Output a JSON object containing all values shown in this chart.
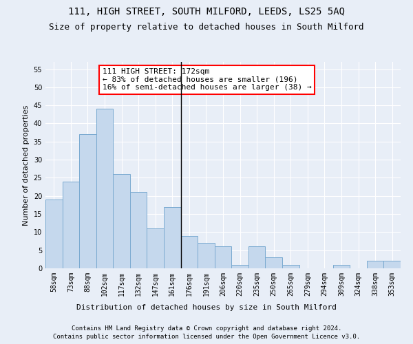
{
  "title": "111, HIGH STREET, SOUTH MILFORD, LEEDS, LS25 5AQ",
  "subtitle": "Size of property relative to detached houses in South Milford",
  "xlabel": "Distribution of detached houses by size in South Milford",
  "ylabel": "Number of detached properties",
  "bar_color": "#c5d8ed",
  "bar_edge_color": "#7aaad0",
  "background_color": "#e8eef7",
  "grid_color": "#ffffff",
  "categories": [
    "58sqm",
    "73sqm",
    "88sqm",
    "102sqm",
    "117sqm",
    "132sqm",
    "147sqm",
    "161sqm",
    "176sqm",
    "191sqm",
    "206sqm",
    "220sqm",
    "235sqm",
    "250sqm",
    "265sqm",
    "279sqm",
    "294sqm",
    "309sqm",
    "324sqm",
    "338sqm",
    "353sqm"
  ],
  "values": [
    19,
    24,
    37,
    44,
    26,
    21,
    11,
    17,
    9,
    7,
    6,
    1,
    6,
    3,
    1,
    0,
    0,
    1,
    0,
    2,
    2
  ],
  "ylim": [
    0,
    57
  ],
  "yticks": [
    0,
    5,
    10,
    15,
    20,
    25,
    30,
    35,
    40,
    45,
    50,
    55
  ],
  "vline_x": 7.5,
  "annotation_title": "111 HIGH STREET: 172sqm",
  "annotation_line1": "← 83% of detached houses are smaller (196)",
  "annotation_line2": "16% of semi-detached houses are larger (38) →",
  "footnote1": "Contains HM Land Registry data © Crown copyright and database right 2024.",
  "footnote2": "Contains public sector information licensed under the Open Government Licence v3.0.",
  "title_fontsize": 10,
  "subtitle_fontsize": 9,
  "axis_label_fontsize": 8,
  "tick_fontsize": 7,
  "annotation_fontsize": 8,
  "footnote_fontsize": 6.5
}
